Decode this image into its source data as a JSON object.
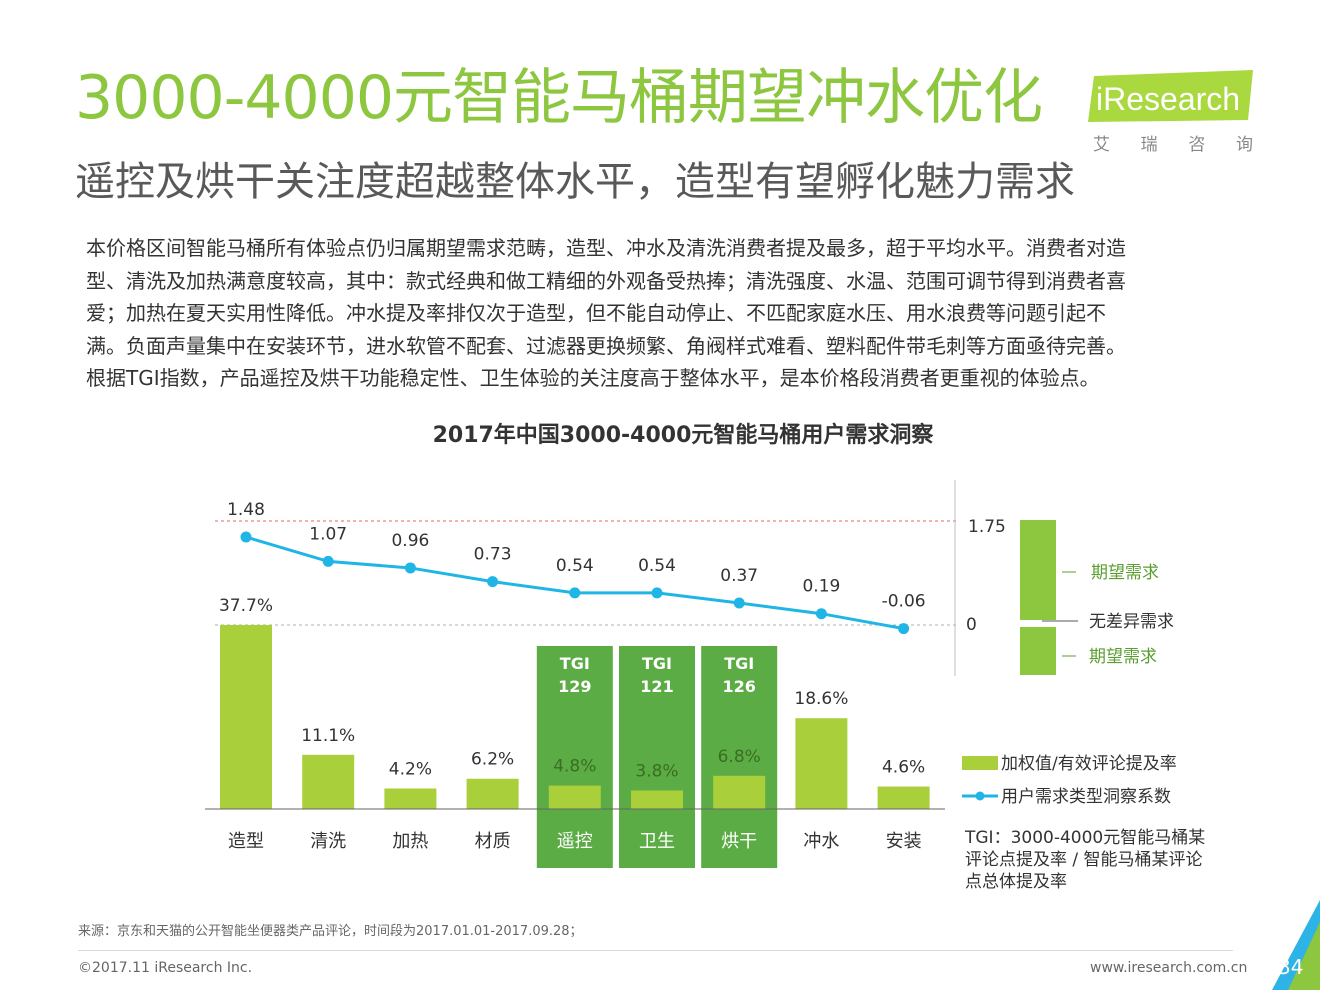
{
  "header": {
    "title": "3000-4000元智能马桶期望冲水优化",
    "subtitle": "遥控及烘干关注度超越整体水平，造型有望孵化魅力需求"
  },
  "logo": {
    "text": "iResearch",
    "cn_chars": [
      "艾",
      "瑞",
      "咨",
      "询"
    ]
  },
  "body_paragraph": [
    "本价格区间智能马桶所有体验点仍归属期望需求范畴，造型、冲水及清洗消费者提及最多，超于平均水平。消费者对造",
    "型、清洗及加热满意度较高，其中：款式经典和做工精细的外观备受热捧；清洗强度、水温、范围可调节得到消费者喜",
    "爱；加热在夏天实用性降低。冲水提及率排仅次于造型，但不能自动停止、不匹配家庭水压、用水浪费等问题引起不",
    "满。负面声量集中在安装环节，进水软管不配套、过滤器更换频繁、角阀样式难看、塑料配件带毛刺等方面亟待完善。",
    "根据TGI指数，产品遥控及烘干功能稳定性、卫生体验的关注度高于整体水平，是本价格段消费者更重视的体验点。"
  ],
  "chart_data": {
    "type": "bar",
    "title": "2017年中国3000-4000元智能马桶用户需求洞察",
    "categories": [
      "造型",
      "清洗",
      "加热",
      "材质",
      "遥控",
      "卫生",
      "烘干",
      "冲水",
      "安装"
    ],
    "series": [
      {
        "name": "加权值/有效评论提及率",
        "type": "bar",
        "values": [
          37.7,
          11.1,
          4.2,
          6.2,
          4.8,
          3.8,
          6.8,
          18.6,
          4.6
        ],
        "labels": [
          "37.7%",
          "11.1%",
          "4.2%",
          "6.2%",
          "4.8%",
          "3.8%",
          "6.8%",
          "18.6%",
          "4.6%"
        ],
        "color": "#a9cf3b"
      },
      {
        "name": "用户需求类型洞察系数",
        "type": "line",
        "values": [
          1.48,
          1.07,
          0.96,
          0.73,
          0.54,
          0.54,
          0.37,
          0.19,
          -0.06
        ],
        "labels": [
          "1.48",
          "1.07",
          "0.96",
          "0.73",
          "0.54",
          "0.54",
          "0.37",
          "0.19",
          "-0.06"
        ],
        "color": "#1fb6e6"
      }
    ],
    "highlights": [
      {
        "category": "遥控",
        "tgi_label": "TGI",
        "tgi_value": "129"
      },
      {
        "category": "卫生",
        "tgi_label": "TGI",
        "tgi_value": "121"
      },
      {
        "category": "烘干",
        "tgi_label": "TGI",
        "tgi_value": "126"
      }
    ],
    "reference_lines": [
      1.75,
      0
    ],
    "bar_ylim": [
      0,
      37.7
    ],
    "line_ylim": [
      -0.06,
      1.75
    ],
    "side_scale": {
      "tick_top": "1.75",
      "tick_mid": "0",
      "top_label": "期望需求",
      "mid_label": "无差异需求",
      "bottom_label": "期望需求"
    },
    "tgi_note": [
      "TGI：3000-4000元智能马桶某",
      "评论点提及率 / 智能马桶某评论",
      "点总体提及率"
    ],
    "colors": {
      "bar": "#a9cf3b",
      "line": "#1fb6e6",
      "highlight": "#5cac45",
      "side_bar": "#8dc63f",
      "side_text": "#5a9e2f"
    }
  },
  "footer": {
    "source": "来源：京东和天猫的公开智能坐便器类产品评论，时间段为2017.01.01-2017.09.28；",
    "copyright": "©2017.11 iResearch Inc.",
    "website": "www.iresearch.com.cn",
    "page_number": "34"
  }
}
